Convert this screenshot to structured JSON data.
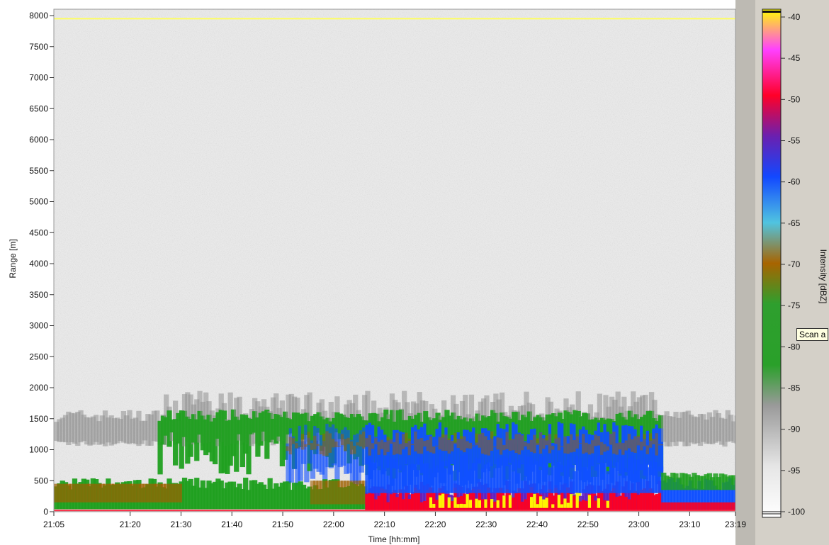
{
  "chart_data": {
    "type": "heatmap",
    "title": "",
    "xlabel": "Time [hh:mm]",
    "ylabel": "Range [m]",
    "x_ticks": [
      "21:05",
      "21:20",
      "21:30",
      "21:40",
      "21:50",
      "22:00",
      "22:10",
      "22:20",
      "22:30",
      "22:40",
      "22:50",
      "23:00",
      "23:10",
      "23:19"
    ],
    "y_ticks": [
      "0",
      "500",
      "1000",
      "1500",
      "2000",
      "2500",
      "3000",
      "3500",
      "4000",
      "4500",
      "5000",
      "5500",
      "6000",
      "6500",
      "7000",
      "7500",
      "8000"
    ],
    "ylim": [
      0,
      8000
    ],
    "colorbar": {
      "label": "Intensity [dBZ]",
      "range": [
        -100,
        -40
      ],
      "ticks": [
        "-40",
        "-45",
        "-50",
        "-55",
        "-60",
        "-65",
        "-70",
        "-75",
        "-80",
        "-85",
        "-90",
        "-95",
        "-100"
      ],
      "colors": {
        "-40": "#ffff00",
        "-45": "#ff40ff",
        "-50": "#ff0020",
        "-55": "#6020c0",
        "-60": "#1050ff",
        "-65": "#50c0e0",
        "-70": "#a06000",
        "-75": "#20a020",
        "-80": "#30a030",
        "-85": "#909090",
        "-90": "#c8c8c8",
        "-95": "#e8e8e8",
        "-100": "#ffffff"
      }
    }
  },
  "tooltip": {
    "text": "Scan a"
  },
  "colors": {
    "panel_bg": "#d4d0c8",
    "noise": "#c8c8c8",
    "yellow_line": "#ffff60"
  }
}
